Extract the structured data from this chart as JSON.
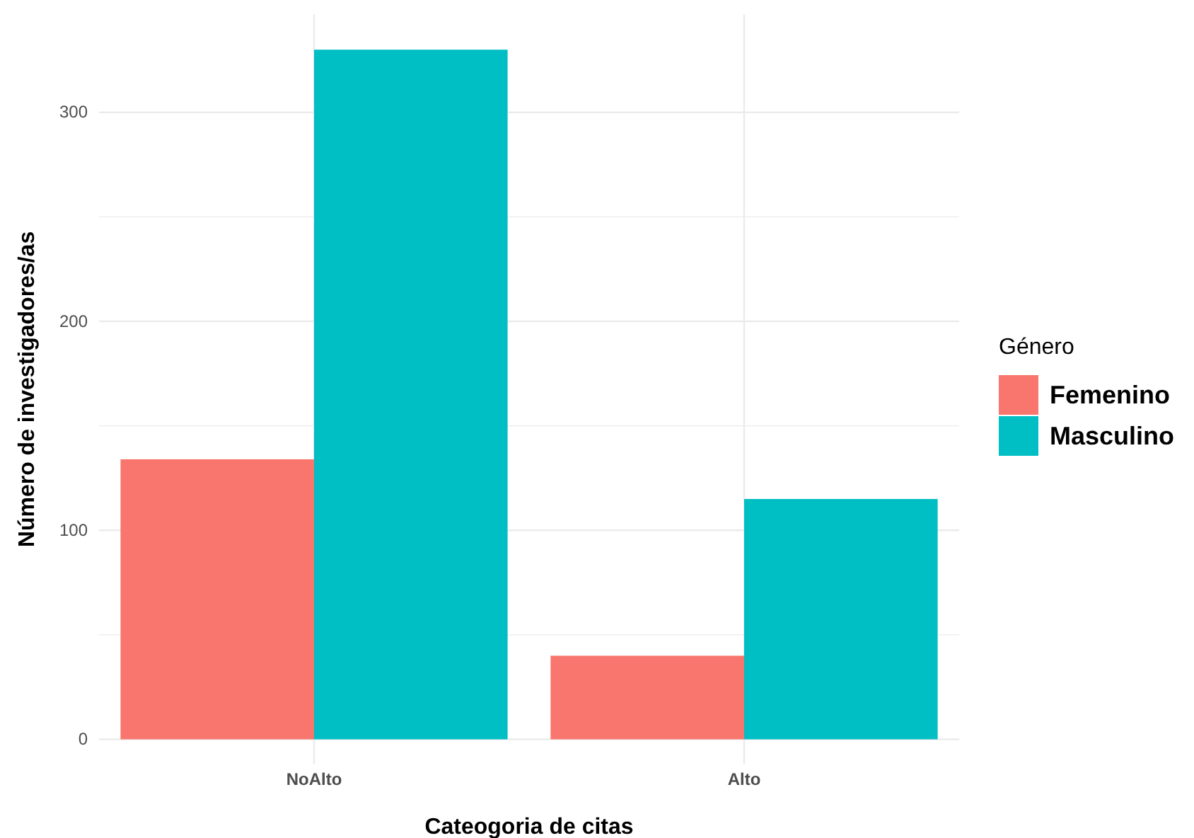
{
  "chart_data": {
    "type": "bar",
    "xlabel": "Cateogoria de citas",
    "ylabel": "Número de investigadores/as",
    "legend_title": "Género",
    "categories": [
      "NoAlto",
      "Alto"
    ],
    "series": [
      {
        "name": "Femenino",
        "color": "#f8766d",
        "values": [
          134,
          40
        ]
      },
      {
        "name": "Masculino",
        "color": "#00bfc4",
        "values": [
          330,
          115
        ]
      }
    ],
    "ylim": [
      -12,
      347
    ],
    "yticks": [
      0,
      {
        "value": 50,
        "label": null
      },
      100,
      {
        "value": 150,
        "label": null
      },
      200,
      {
        "value": 250,
        "label": null
      },
      300
    ],
    "grid": true,
    "legend": "right"
  }
}
